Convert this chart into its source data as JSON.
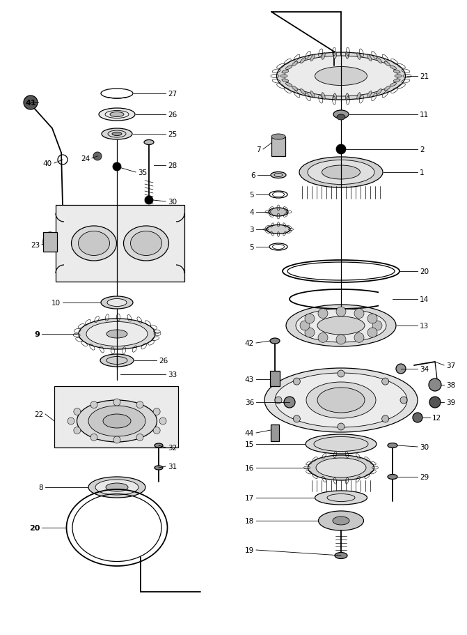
{
  "bg_color": "#ffffff",
  "fig_width": 6.71,
  "fig_height": 9.12,
  "dpi": 100,
  "lw_thin": 0.6,
  "lw_med": 0.9,
  "lw_thick": 1.3,
  "font_size": 7.5,
  "font_size_bold": 8.0
}
